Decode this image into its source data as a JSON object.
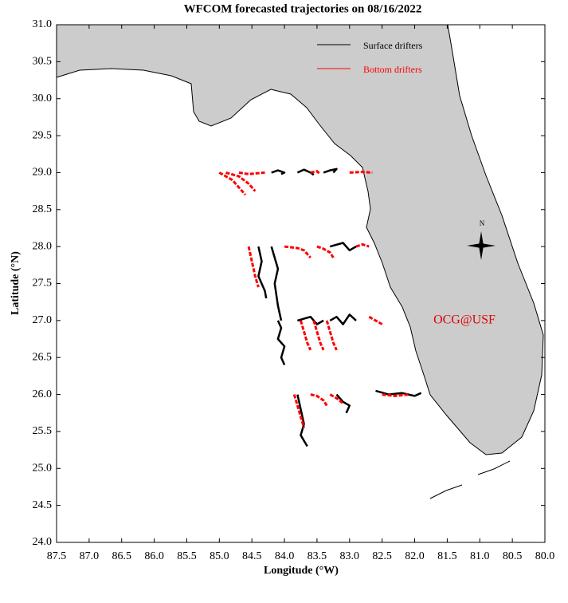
{
  "chart_data": {
    "type": "trajectory-map",
    "title": "WFCOM forecasted trajectories on 08/16/2022",
    "x_label": "Longitude (°W)",
    "y_label": "Latitude (°N)",
    "annotation": "OCG@USF",
    "compass_label": "N",
    "xlim": [
      87.5,
      80.0
    ],
    "ylim": [
      24.0,
      31.0
    ],
    "xticks": [
      87.5,
      {
        "value": 87.0,
        "label": "87.0"
      },
      86.5,
      {
        "value": 86.0,
        "label": "86.0"
      },
      85.5,
      {
        "value": 85.0,
        "label": "85.0"
      },
      84.5,
      {
        "value": 84.0,
        "label": "84.0"
      },
      83.5,
      {
        "value": 83.0,
        "label": "83.0"
      },
      82.5,
      {
        "value": 82.0,
        "label": "82.0"
      },
      81.5,
      {
        "value": 81.0,
        "label": "81.0"
      },
      80.5,
      {
        "value": 80.0,
        "label": "80.0"
      }
    ],
    "yticks": [
      {
        "value": 24.0,
        "label": "24.0"
      },
      24.5,
      {
        "value": 25.0,
        "label": "25.0"
      },
      25.5,
      {
        "value": 26.0,
        "label": "26.0"
      },
      26.5,
      {
        "value": 27.0,
        "label": "27.0"
      },
      27.5,
      {
        "value": 28.0,
        "label": "28.0"
      },
      28.5,
      {
        "value": 29.0,
        "label": "29.0"
      },
      29.5,
      {
        "value": 30.0,
        "label": "30.0"
      },
      30.5,
      {
        "value": 31.0,
        "label": "31.0"
      }
    ],
    "series": [
      {
        "name": "Surface drifters",
        "color": "#000000",
        "tracks": [
          {
            "x": [
              84.2,
              84.1,
              84.0,
              84.05
            ],
            "y": [
              29.0,
              29.03,
              29.0,
              28.98
            ]
          },
          {
            "x": [
              83.8,
              83.7,
              83.6,
              83.55
            ],
            "y": [
              29.0,
              29.04,
              29.0,
              28.97
            ]
          },
          {
            "x": [
              83.4,
              83.3,
              83.2,
              83.25
            ],
            "y": [
              29.0,
              29.03,
              29.05,
              29.0
            ]
          },
          {
            "x": [
              84.4,
              84.35,
              84.4,
              84.3,
              84.28
            ],
            "y": [
              28.0,
              27.8,
              27.6,
              27.4,
              27.3
            ]
          },
          {
            "x": [
              84.2,
              84.1,
              84.15,
              84.1,
              84.05
            ],
            "y": [
              28.0,
              27.7,
              27.5,
              27.2,
              27.0
            ]
          },
          {
            "x": [
              83.3,
              83.1,
              83.0,
              82.9
            ],
            "y": [
              28.0,
              28.05,
              27.95,
              28.0
            ]
          },
          {
            "x": [
              84.1,
              84.05,
              84.1,
              84.0,
              84.05,
              84.0
            ],
            "y": [
              27.0,
              26.9,
              26.75,
              26.65,
              26.5,
              26.4
            ]
          },
          {
            "x": [
              83.8,
              83.6,
              83.5,
              83.4
            ],
            "y": [
              27.0,
              27.05,
              26.95,
              27.0
            ]
          },
          {
            "x": [
              83.3,
              83.2,
              83.1,
              83.0,
              82.9
            ],
            "y": [
              27.0,
              27.05,
              26.95,
              27.08,
              27.0
            ]
          },
          {
            "x": [
              83.8,
              83.75,
              83.7,
              83.75,
              83.65
            ],
            "y": [
              26.0,
              25.8,
              25.6,
              25.45,
              25.3
            ]
          },
          {
            "x": [
              83.2,
              83.1,
              83.0,
              83.05
            ],
            "y": [
              26.0,
              25.9,
              25.85,
              25.75
            ]
          },
          {
            "x": [
              82.6,
              82.4,
              82.2,
              82.0,
              81.9
            ],
            "y": [
              26.05,
              26.0,
              26.02,
              25.98,
              26.02
            ]
          }
        ]
      },
      {
        "name": "Bottom drifters",
        "color": "#ff0000",
        "tracks": [
          {
            "x": [
              85.0,
              84.8,
              84.7,
              84.6
            ],
            "y": [
              29.0,
              28.9,
              28.8,
              28.7
            ]
          },
          {
            "x": [
              84.9,
              84.7,
              84.55,
              84.45
            ],
            "y": [
              29.0,
              28.95,
              28.85,
              28.75
            ]
          },
          {
            "x": [
              84.7,
              84.55,
              84.45,
              84.3
            ],
            "y": [
              29.0,
              28.98,
              28.99,
              29.0
            ]
          },
          {
            "x": [
              83.6,
              83.5,
              83.45
            ],
            "y": [
              29.0,
              29.02,
              28.98
            ]
          },
          {
            "x": [
              83.0,
              82.8,
              82.65
            ],
            "y": [
              29.0,
              29.01,
              29.0
            ]
          },
          {
            "x": [
              84.55,
              84.5,
              84.45,
              84.4
            ],
            "y": [
              28.0,
              27.8,
              27.6,
              27.45
            ]
          },
          {
            "x": [
              84.0,
              83.8,
              83.7,
              83.6
            ],
            "y": [
              28.0,
              27.98,
              27.95,
              27.85
            ]
          },
          {
            "x": [
              83.5,
              83.4,
              83.3,
              83.25
            ],
            "y": [
              28.0,
              27.97,
              27.92,
              27.85
            ]
          },
          {
            "x": [
              82.9,
              82.8,
              82.7
            ],
            "y": [
              28.0,
              28.03,
              28.0
            ]
          },
          {
            "x": [
              83.75,
              83.7,
              83.65,
              83.6
            ],
            "y": [
              27.0,
              26.85,
              26.7,
              26.6
            ]
          },
          {
            "x": [
              83.55,
              83.5,
              83.45,
              83.4
            ],
            "y": [
              27.0,
              26.85,
              26.7,
              26.6
            ]
          },
          {
            "x": [
              83.35,
              83.3,
              83.25,
              83.2
            ],
            "y": [
              27.0,
              26.85,
              26.7,
              26.6
            ]
          },
          {
            "x": [
              82.7,
              82.6,
              82.5
            ],
            "y": [
              27.05,
              27.0,
              26.95
            ]
          },
          {
            "x": [
              83.85,
              83.8,
              83.75,
              83.7
            ],
            "y": [
              26.0,
              25.85,
              25.7,
              25.55
            ]
          },
          {
            "x": [
              83.6,
              83.5,
              83.4,
              83.35
            ],
            "y": [
              26.0,
              25.98,
              25.92,
              25.85
            ]
          },
          {
            "x": [
              83.3,
              83.2,
              83.1
            ],
            "y": [
              26.0,
              25.95,
              25.88
            ]
          },
          {
            "x": [
              82.5,
              82.3,
              82.1
            ],
            "y": [
              26.0,
              25.98,
              26.0
            ]
          }
        ]
      }
    ]
  }
}
